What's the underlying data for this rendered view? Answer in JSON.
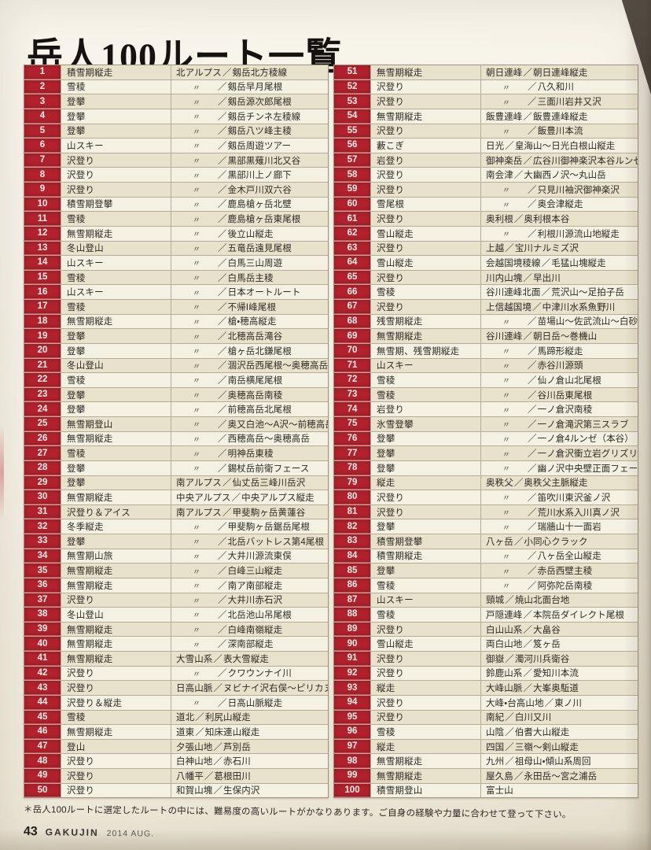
{
  "page": {
    "title": "岳人100ルート一覧",
    "footnote": "＊岳人100ルートに選定したルートの中には、難易度の高いルートがかなりあります。ご自身の経験や力量に合わせて登って下さい。",
    "page_number": "43",
    "magazine": "GAKUJIN",
    "issue": "2014 AUG."
  },
  "colors": {
    "number_cell_bg": "#b2222e",
    "row_odd_bg": "#e8e1cc",
    "row_even_bg": "#f4f0e2",
    "paper": "#f5f1e6",
    "border": "#9e957f"
  },
  "table": {
    "ditto_mark": "〃",
    "separator": "／",
    "rows": [
      {
        "n": "1",
        "cat": "積雪期縦走",
        "area": "北アルプス",
        "name": "剱岳北方稜線"
      },
      {
        "n": "2",
        "cat": "雪稜",
        "area": "〃",
        "name": "剱岳早月尾根"
      },
      {
        "n": "3",
        "cat": "登攀",
        "area": "〃",
        "name": "剱岳源次郎尾根"
      },
      {
        "n": "4",
        "cat": "登攀",
        "area": "〃",
        "name": "剱岳チンネ左稜線"
      },
      {
        "n": "5",
        "cat": "登攀",
        "area": "〃",
        "name": "剱岳八ツ峰主稜"
      },
      {
        "n": "6",
        "cat": "山スキー",
        "area": "〃",
        "name": "剱岳周遊ツアー"
      },
      {
        "n": "7",
        "cat": "沢登り",
        "area": "〃",
        "name": "黒部黒薙川北又谷"
      },
      {
        "n": "8",
        "cat": "沢登り",
        "area": "〃",
        "name": "黒部川上ノ廊下"
      },
      {
        "n": "9",
        "cat": "沢登り",
        "area": "〃",
        "name": "金木戸川双六谷"
      },
      {
        "n": "10",
        "cat": "積雪期登攀",
        "area": "〃",
        "name": "鹿島槍ヶ岳北壁"
      },
      {
        "n": "11",
        "cat": "雪稜",
        "area": "〃",
        "name": "鹿島槍ヶ岳東尾根"
      },
      {
        "n": "12",
        "cat": "無雪期縦走",
        "area": "〃",
        "name": "後立山縦走"
      },
      {
        "n": "13",
        "cat": "冬山登山",
        "area": "〃",
        "name": "五竜岳遠見尾根"
      },
      {
        "n": "14",
        "cat": "山スキー",
        "area": "〃",
        "name": "白馬三山周遊"
      },
      {
        "n": "15",
        "cat": "雪稜",
        "area": "〃",
        "name": "白馬岳主稜"
      },
      {
        "n": "16",
        "cat": "山スキー",
        "area": "〃",
        "name": "日本オートルート"
      },
      {
        "n": "17",
        "cat": "雪稜",
        "area": "〃",
        "name": "不帰Ⅰ峰尾根"
      },
      {
        "n": "18",
        "cat": "無雪期縦走",
        "area": "〃",
        "name": "槍・穂高縦走"
      },
      {
        "n": "19",
        "cat": "登攀",
        "area": "〃",
        "name": "北穂高岳滝谷"
      },
      {
        "n": "20",
        "cat": "登攀",
        "area": "〃",
        "name": "槍ヶ岳北鎌尾根"
      },
      {
        "n": "21",
        "cat": "冬山登山",
        "area": "〃",
        "name": "涸沢岳西尾根～奥穂高岳"
      },
      {
        "n": "22",
        "cat": "雪稜",
        "area": "〃",
        "name": "南岳横尾尾根"
      },
      {
        "n": "23",
        "cat": "登攀",
        "area": "〃",
        "name": "奥穂高岳南稜"
      },
      {
        "n": "24",
        "cat": "登攀",
        "area": "〃",
        "name": "前穂高岳北尾根"
      },
      {
        "n": "25",
        "cat": "無雪期登山",
        "area": "〃",
        "name": "奥又白池～A沢～前穂高岳"
      },
      {
        "n": "26",
        "cat": "無雪期縦走",
        "area": "〃",
        "name": "西穂高岳～奥穂高岳"
      },
      {
        "n": "27",
        "cat": "雪稜",
        "area": "〃",
        "name": "明神岳東稜"
      },
      {
        "n": "28",
        "cat": "登攀",
        "area": "〃",
        "name": "錫杖岳前衛フェース"
      },
      {
        "n": "29",
        "cat": "登攀",
        "area": "南アルプス",
        "name": "仙丈岳三峰川岳沢"
      },
      {
        "n": "30",
        "cat": "無雪期縦走",
        "area": "中央アルプス",
        "name": "中央アルプス縦走"
      },
      {
        "n": "31",
        "cat": "沢登り＆アイス",
        "area": "南アルプス",
        "name": "甲斐駒ヶ岳黄蓮谷"
      },
      {
        "n": "32",
        "cat": "冬季縦走",
        "area": "〃",
        "name": "甲斐駒ヶ岳鋸岳尾根"
      },
      {
        "n": "33",
        "cat": "登攀",
        "area": "〃",
        "name": "北岳バットレス第4尾根"
      },
      {
        "n": "34",
        "cat": "無雪期山旅",
        "area": "〃",
        "name": "大井川源流東俣"
      },
      {
        "n": "35",
        "cat": "無雪期縦走",
        "area": "〃",
        "name": "白峰三山縦走"
      },
      {
        "n": "36",
        "cat": "無雪期縦走",
        "area": "〃",
        "name": "南ア南部縦走"
      },
      {
        "n": "37",
        "cat": "沢登り",
        "area": "〃",
        "name": "大井川赤石沢"
      },
      {
        "n": "38",
        "cat": "冬山登山",
        "area": "〃",
        "name": "北岳池山吊尾根"
      },
      {
        "n": "39",
        "cat": "無雪期縦走",
        "area": "〃",
        "name": "白峰南嶺縦走"
      },
      {
        "n": "40",
        "cat": "無雪期縦走",
        "area": "〃",
        "name": "深南部縦走"
      },
      {
        "n": "41",
        "cat": "無雪期縦走",
        "area": "大雪山系",
        "name": "表大雪縦走"
      },
      {
        "n": "42",
        "cat": "沢登り",
        "area": "〃",
        "name": "クワウンナイ川"
      },
      {
        "n": "43",
        "cat": "沢登り",
        "area": "日高山脈",
        "name": "ヌビナイ沢右俣～ピリカヌプリ"
      },
      {
        "n": "44",
        "cat": "沢登り＆縦走",
        "area": "〃",
        "name": "日高山脈縦走"
      },
      {
        "n": "45",
        "cat": "雪稜",
        "area": "道北",
        "name": "利尻山縦走"
      },
      {
        "n": "46",
        "cat": "無雪期縦走",
        "area": "道東",
        "name": "知床連山縦走"
      },
      {
        "n": "47",
        "cat": "登山",
        "area": "夕張山地",
        "name": "芦別岳"
      },
      {
        "n": "48",
        "cat": "沢登り",
        "area": "白神山地",
        "name": "赤石川"
      },
      {
        "n": "49",
        "cat": "沢登り",
        "area": "八幡平",
        "name": "葛根田川"
      },
      {
        "n": "50",
        "cat": "沢登り",
        "area": "和賀山塊",
        "name": "生保内沢"
      },
      {
        "n": "51",
        "cat": "無雪期縦走",
        "area": "朝日連峰",
        "name": "朝日連峰縦走"
      },
      {
        "n": "52",
        "cat": "沢登り",
        "area": "〃",
        "name": "八久和川"
      },
      {
        "n": "53",
        "cat": "沢登り",
        "area": "〃",
        "name": "三面川岩井又沢"
      },
      {
        "n": "54",
        "cat": "無雪期縦走",
        "area": "飯豊連峰",
        "name": "飯豊連峰縦走"
      },
      {
        "n": "55",
        "cat": "沢登り",
        "area": "〃",
        "name": "飯豊川本流"
      },
      {
        "n": "56",
        "cat": "藪こぎ",
        "area": "日光",
        "name": "皇海山～日光白根山縦走"
      },
      {
        "n": "57",
        "cat": "岩登り",
        "area": "御神楽岳",
        "name": "広谷川御神楽沢本谷ルンゼ"
      },
      {
        "n": "58",
        "cat": "沢登り",
        "area": "南会津",
        "name": "大幽西ノ沢～丸山岳"
      },
      {
        "n": "59",
        "cat": "沢登り",
        "area": "〃",
        "name": "只見川袖沢御神楽沢"
      },
      {
        "n": "60",
        "cat": "雪尾根",
        "area": "〃",
        "name": "奥会津縦走"
      },
      {
        "n": "61",
        "cat": "沢登り",
        "area": "奥利根",
        "name": "奥利根本谷"
      },
      {
        "n": "62",
        "cat": "雪山縦走",
        "area": "〃",
        "name": "利根川源流山地縦走"
      },
      {
        "n": "63",
        "cat": "沢登り",
        "area": "上越",
        "name": "宝川ナルミズ沢"
      },
      {
        "n": "64",
        "cat": "雪山縦走",
        "area": "会越国境稜線",
        "name": "毛猛山塊縦走"
      },
      {
        "n": "65",
        "cat": "沢登り",
        "area": "川内山塊",
        "name": "早出川"
      },
      {
        "n": "66",
        "cat": "雪稜",
        "area": "谷川連峰北面",
        "name": "荒沢山～足拍子岳"
      },
      {
        "n": "67",
        "cat": "沢登り",
        "area": "上信越国境",
        "name": "中津川水系魚野川"
      },
      {
        "n": "68",
        "cat": "残雪期縦走",
        "area": "〃",
        "name": "苗場山～佐武流山～白砂山"
      },
      {
        "n": "69",
        "cat": "無雪期縦走",
        "area": "谷川連峰",
        "name": "朝日岳～巻機山"
      },
      {
        "n": "70",
        "cat": "無雪期、残雪期縦走",
        "area": "〃",
        "name": "馬蹄形縦走"
      },
      {
        "n": "71",
        "cat": "山スキー",
        "area": "〃",
        "name": "赤谷川源頭"
      },
      {
        "n": "72",
        "cat": "雪稜",
        "area": "〃",
        "name": "仙ノ倉山北尾根"
      },
      {
        "n": "73",
        "cat": "雪稜",
        "area": "〃",
        "name": "谷川岳東尾根"
      },
      {
        "n": "74",
        "cat": "岩登り",
        "area": "〃",
        "name": "一ノ倉沢南稜"
      },
      {
        "n": "75",
        "cat": "氷雪登攀",
        "area": "〃",
        "name": "一ノ倉滝沢第三スラブ"
      },
      {
        "n": "76",
        "cat": "登攀",
        "area": "〃",
        "name": "一ノ倉4ルンゼ（本谷）"
      },
      {
        "n": "77",
        "cat": "登攀",
        "area": "〃",
        "name": "一ノ倉沢衝立岩グリズリー"
      },
      {
        "n": "78",
        "cat": "登攀",
        "area": "〃",
        "name": "幽ノ沢中央壁正面フェース"
      },
      {
        "n": "79",
        "cat": "縦走",
        "area": "奥秩父",
        "name": "奥秩父主脈縦走"
      },
      {
        "n": "80",
        "cat": "沢登り",
        "area": "〃",
        "name": "笛吹川東沢釜ノ沢"
      },
      {
        "n": "81",
        "cat": "沢登り",
        "area": "〃",
        "name": "荒川水系入川真ノ沢"
      },
      {
        "n": "82",
        "cat": "登攀",
        "area": "〃",
        "name": "瑞牆山十一面岩"
      },
      {
        "n": "83",
        "cat": "積雪期登攀",
        "area": "八ヶ岳",
        "name": "小同心クラック"
      },
      {
        "n": "84",
        "cat": "積雪期縦走",
        "area": "〃",
        "name": "八ヶ岳全山縦走"
      },
      {
        "n": "85",
        "cat": "登攀",
        "area": "〃",
        "name": "赤岳西壁主稜"
      },
      {
        "n": "86",
        "cat": "雪稜",
        "area": "〃",
        "name": "阿弥陀岳南稜"
      },
      {
        "n": "87",
        "cat": "山スキー",
        "area": "頸城",
        "name": "焼山北面台地"
      },
      {
        "n": "88",
        "cat": "雪稜",
        "area": "戸隠連峰",
        "name": "本院岳ダイレクト尾根"
      },
      {
        "n": "89",
        "cat": "沢登り",
        "area": "白山山系",
        "name": "大畠谷"
      },
      {
        "n": "90",
        "cat": "雪山縦走",
        "area": "両白山地",
        "name": "笈ヶ岳"
      },
      {
        "n": "91",
        "cat": "沢登り",
        "area": "御嶽",
        "name": "濁河川兵衛谷"
      },
      {
        "n": "92",
        "cat": "沢登り",
        "area": "鈴鹿山系",
        "name": "愛知川本流"
      },
      {
        "n": "93",
        "cat": "縦走",
        "area": "大峰山脈",
        "name": "大峯奥駈道"
      },
      {
        "n": "94",
        "cat": "沢登り",
        "area": "大峰・台高山地",
        "name": "東ノ川"
      },
      {
        "n": "95",
        "cat": "沢登り",
        "area": "南紀",
        "name": "白川又川"
      },
      {
        "n": "96",
        "cat": "雪稜",
        "area": "山陰",
        "name": "伯耆大山縦走"
      },
      {
        "n": "97",
        "cat": "縦走",
        "area": "四国",
        "name": "三嶺～剣山縦走"
      },
      {
        "n": "98",
        "cat": "無雪期縦走",
        "area": "九州",
        "name": "祖母山・傾山系周回"
      },
      {
        "n": "99",
        "cat": "無雪期縦走",
        "area": "屋久島",
        "name": "永田岳～宮之浦岳"
      },
      {
        "n": "100",
        "cat": "積雪期登山",
        "area": "富士山",
        "name": ""
      }
    ]
  }
}
